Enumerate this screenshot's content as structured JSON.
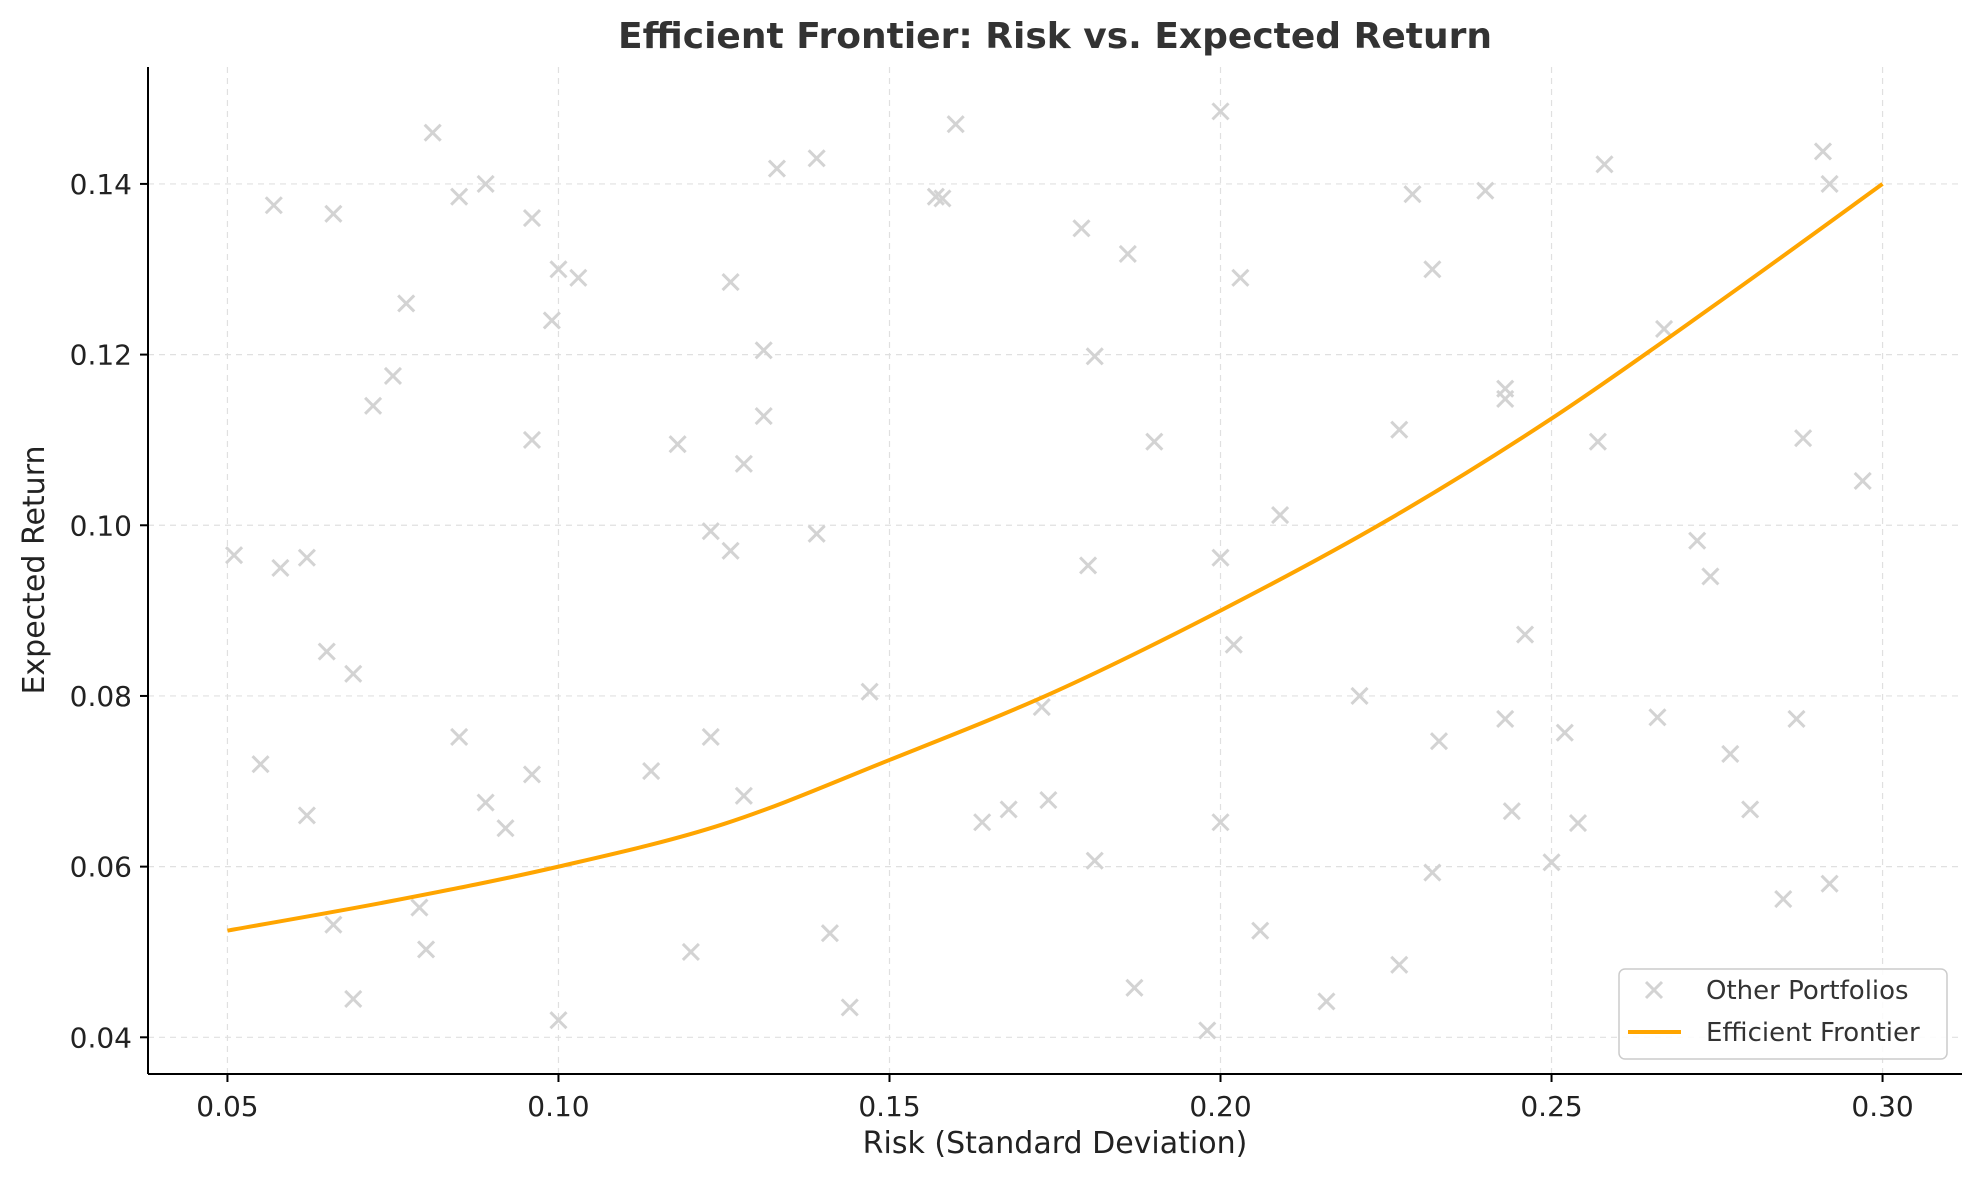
{
  "colors": {
    "portfolios": "#d3d3d3",
    "frontier": "#ffa500",
    "legend_border": "#cccccc"
  },
  "chart_data": {
    "type": "scatter",
    "title": "Efficient Frontier: Risk vs. Expected Return",
    "xlabel": "Risk (Standard Deviation)",
    "ylabel": "Expected Return",
    "xlim": [
      0.038,
      0.312
    ],
    "ylim": [
      0.0357,
      0.1537
    ],
    "xticks": [
      0.05,
      0.1,
      0.15,
      0.2,
      0.25,
      0.3
    ],
    "xtick_labels": [
      "0.05",
      "0.10",
      "0.15",
      "0.20",
      "0.25",
      "0.30"
    ],
    "yticks": [
      0.04,
      0.06,
      0.08,
      0.1,
      0.12,
      0.14
    ],
    "ytick_labels": [
      "0.04",
      "0.06",
      "0.08",
      "0.10",
      "0.12",
      "0.14"
    ],
    "grid": true,
    "legend_position": "lower-right",
    "series": [
      {
        "name": "Other Portfolios",
        "kind": "scatter",
        "marker": "x",
        "points": [
          [
            0.081,
            0.146
          ],
          [
            0.057,
            0.1375
          ],
          [
            0.066,
            0.1365
          ],
          [
            0.085,
            0.1385
          ],
          [
            0.089,
            0.14
          ],
          [
            0.096,
            0.136
          ],
          [
            0.1,
            0.13
          ],
          [
            0.103,
            0.129
          ],
          [
            0.077,
            0.126
          ],
          [
            0.099,
            0.124
          ],
          [
            0.075,
            0.1175
          ],
          [
            0.072,
            0.114
          ],
          [
            0.096,
            0.11
          ],
          [
            0.051,
            0.0965
          ],
          [
            0.058,
            0.095
          ],
          [
            0.062,
            0.0962
          ],
          [
            0.065,
            0.0852
          ],
          [
            0.069,
            0.0826
          ],
          [
            0.055,
            0.072
          ],
          [
            0.062,
            0.066
          ],
          [
            0.085,
            0.0752
          ],
          [
            0.089,
            0.0675
          ],
          [
            0.092,
            0.0645
          ],
          [
            0.096,
            0.0708
          ],
          [
            0.066,
            0.0532
          ],
          [
            0.079,
            0.0552
          ],
          [
            0.08,
            0.0503
          ],
          [
            0.069,
            0.0445
          ],
          [
            0.1,
            0.042
          ],
          [
            0.114,
            0.0712
          ],
          [
            0.118,
            0.1095
          ],
          [
            0.12,
            0.05
          ],
          [
            0.123,
            0.0993
          ],
          [
            0.123,
            0.0752
          ],
          [
            0.126,
            0.097
          ],
          [
            0.126,
            0.1285
          ],
          [
            0.128,
            0.1072
          ],
          [
            0.128,
            0.0683
          ],
          [
            0.131,
            0.1205
          ],
          [
            0.131,
            0.1128
          ],
          [
            0.133,
            0.1418
          ],
          [
            0.139,
            0.143
          ],
          [
            0.139,
            0.099
          ],
          [
            0.141,
            0.0522
          ],
          [
            0.144,
            0.0435
          ],
          [
            0.147,
            0.0805
          ],
          [
            0.157,
            0.1385
          ],
          [
            0.158,
            0.1383
          ],
          [
            0.16,
            0.147
          ],
          [
            0.164,
            0.0652
          ],
          [
            0.168,
            0.0667
          ],
          [
            0.173,
            0.0787
          ],
          [
            0.174,
            0.0678
          ],
          [
            0.179,
            0.1348
          ],
          [
            0.18,
            0.0953
          ],
          [
            0.181,
            0.1198
          ],
          [
            0.181,
            0.0607
          ],
          [
            0.186,
            0.1318
          ],
          [
            0.187,
            0.0458
          ],
          [
            0.19,
            0.1098
          ],
          [
            0.198,
            0.0408
          ],
          [
            0.2,
            0.1485
          ],
          [
            0.2,
            0.0962
          ],
          [
            0.2,
            0.0652
          ],
          [
            0.202,
            0.086
          ],
          [
            0.203,
            0.129
          ],
          [
            0.206,
            0.0525
          ],
          [
            0.209,
            0.1012
          ],
          [
            0.216,
            0.0442
          ],
          [
            0.221,
            0.08
          ],
          [
            0.227,
            0.1112
          ],
          [
            0.227,
            0.0485
          ],
          [
            0.229,
            0.1388
          ],
          [
            0.232,
            0.0593
          ],
          [
            0.232,
            0.13
          ],
          [
            0.233,
            0.0747
          ],
          [
            0.24,
            0.1392
          ],
          [
            0.243,
            0.116
          ],
          [
            0.243,
            0.1148
          ],
          [
            0.243,
            0.0773
          ],
          [
            0.244,
            0.0665
          ],
          [
            0.246,
            0.0872
          ],
          [
            0.25,
            0.0605
          ],
          [
            0.252,
            0.0757
          ],
          [
            0.254,
            0.0651
          ],
          [
            0.257,
            0.1098
          ],
          [
            0.258,
            0.1423
          ],
          [
            0.266,
            0.0775
          ],
          [
            0.267,
            0.123
          ],
          [
            0.272,
            0.0982
          ],
          [
            0.274,
            0.094
          ],
          [
            0.277,
            0.0732
          ],
          [
            0.28,
            0.0667
          ],
          [
            0.285,
            0.0562
          ],
          [
            0.287,
            0.0773
          ],
          [
            0.288,
            0.1102
          ],
          [
            0.291,
            0.1438
          ],
          [
            0.292,
            0.14
          ],
          [
            0.292,
            0.058
          ],
          [
            0.297,
            0.1052
          ]
        ]
      },
      {
        "name": "Efficient Frontier",
        "kind": "line",
        "points": [
          [
            0.05,
            0.0525
          ],
          [
            0.075,
            0.056
          ],
          [
            0.1,
            0.06
          ],
          [
            0.125,
            0.065
          ],
          [
            0.15,
            0.0725
          ],
          [
            0.175,
            0.0805
          ],
          [
            0.2,
            0.09
          ],
          [
            0.225,
            0.1005
          ],
          [
            0.25,
            0.1125
          ],
          [
            0.275,
            0.126
          ],
          [
            0.3,
            0.14
          ]
        ]
      }
    ]
  }
}
